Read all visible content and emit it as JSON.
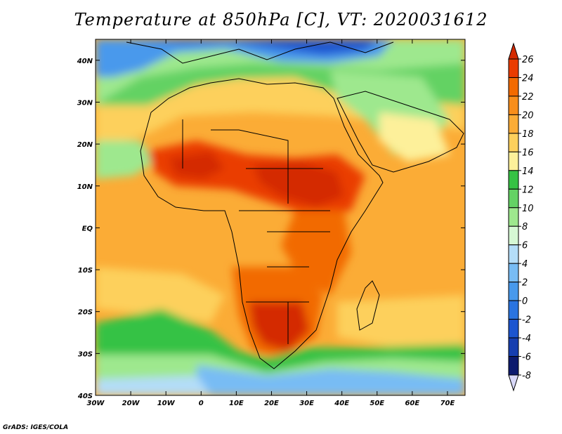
{
  "title": "Temperature at 850hPa [C], VT: 2020031612",
  "credit": "GrADS: IGES/COLA",
  "map": {
    "lon_ticks": [
      "30W",
      "20W",
      "10W",
      "0",
      "10E",
      "20E",
      "30E",
      "40E",
      "50E",
      "60E",
      "70E"
    ],
    "lat_ticks": [
      "40N",
      "30N",
      "20N",
      "10N",
      "EQ",
      "10S",
      "20S",
      "30S",
      "40S"
    ],
    "lon_range": [
      -30,
      75
    ],
    "lat_range": [
      -40,
      45
    ]
  },
  "colorbar": {
    "levels": [
      "26",
      "24",
      "22",
      "20",
      "18",
      "16",
      "14",
      "12",
      "10",
      "8",
      "6",
      "4",
      "2",
      "0",
      "-2",
      "-4",
      "-6",
      "-8"
    ],
    "colors": [
      "#d42a00",
      "#ea3c00",
      "#f26a00",
      "#f88e1b",
      "#fbac36",
      "#fdd05c",
      "#fdf09a",
      "#36c244",
      "#64d264",
      "#9ee88e",
      "#d6f8d4",
      "#b4ddf8",
      "#78bcf4",
      "#4899ec",
      "#2a74e0",
      "#1c55d0",
      "#163eb0",
      "#0c1a6e",
      "#d8d8f8"
    ]
  },
  "colors": {
    "background": "#ffffff",
    "hot": "#d42a00",
    "cold": "#0c1a6e"
  }
}
